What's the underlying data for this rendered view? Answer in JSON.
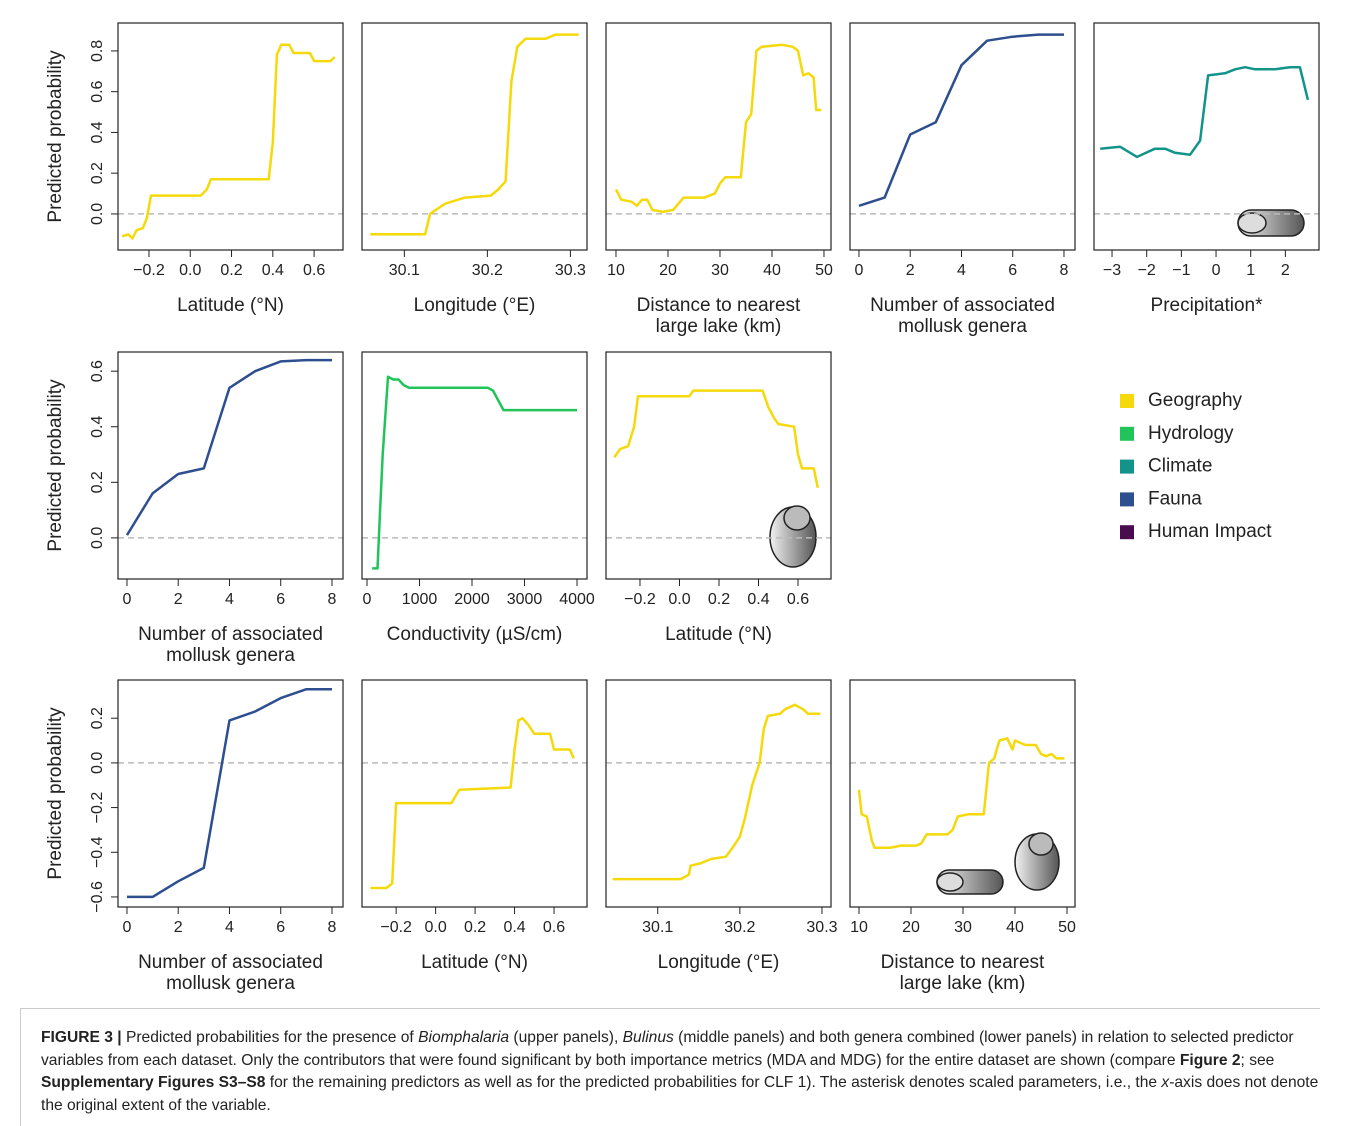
{
  "chart_data": [
    {
      "type": "line",
      "ylabel": "Predicted probability",
      "xlabel": [
        "Latitude (°N)"
      ],
      "color": "#f5d90a",
      "x": [
        -0.33,
        -0.3,
        -0.28,
        -0.26,
        -0.23,
        -0.21,
        -0.19,
        0.05,
        0.08,
        0.1,
        0.38,
        0.4,
        0.42,
        0.44,
        0.48,
        0.5,
        0.58,
        0.6,
        0.68,
        0.7
      ],
      "values": [
        -0.11,
        -0.1,
        -0.12,
        -0.08,
        -0.07,
        -0.02,
        0.09,
        0.09,
        0.12,
        0.17,
        0.17,
        0.35,
        0.78,
        0.83,
        0.83,
        0.79,
        0.79,
        0.75,
        0.75,
        0.77
      ],
      "xlim": [
        -0.35,
        0.74
      ],
      "ylim": [
        -0.177,
        0.937
      ],
      "xticks": [
        {
          "value": -0.2,
          "label": "−0.2"
        },
        {
          "value": 0,
          "label": "0.0"
        },
        0.2,
        0.4,
        0.6
      ],
      "yticks": [
        {
          "value": 0,
          "label": "0.0"
        },
        0.2,
        0.4,
        0.6,
        0.8
      ],
      "reference_line": 0
    },
    {
      "type": "line",
      "xlabel": [
        "Longitude (°E)"
      ],
      "color": "#f5d90a",
      "x": [
        30.059,
        30.125,
        30.131,
        30.149,
        30.173,
        30.204,
        30.213,
        30.222,
        30.229,
        30.236,
        30.246,
        30.27,
        30.282,
        30.31
      ],
      "values": [
        -0.1,
        -0.1,
        0,
        0.05,
        0.08,
        0.09,
        0.12,
        0.16,
        0.65,
        0.82,
        0.86,
        0.86,
        0.88,
        0.88
      ],
      "xlim": [
        30.049,
        30.32
      ],
      "ylim": [
        -0.177,
        0.937
      ],
      "xticks": [
        30.1,
        30.2,
        30.3
      ],
      "reference_line": 0
    },
    {
      "type": "line",
      "xlabel": [
        "Distance to nearest",
        "large lake (km)"
      ],
      "color": "#f5d90a",
      "x": [
        10,
        11,
        13,
        14,
        15,
        16,
        17,
        19,
        21,
        23,
        27,
        29,
        30,
        31,
        34,
        35,
        36,
        37,
        38,
        42,
        44,
        45,
        46,
        47,
        48,
        48.5,
        49.5
      ],
      "values": [
        0.12,
        0.07,
        0.06,
        0.04,
        0.07,
        0.07,
        0.02,
        0.01,
        0.02,
        0.08,
        0.08,
        0.1,
        0.15,
        0.18,
        0.18,
        0.45,
        0.49,
        0.8,
        0.82,
        0.83,
        0.82,
        0.8,
        0.68,
        0.69,
        0.67,
        0.51,
        0.51
      ],
      "xlim": [
        8.08,
        51.35
      ],
      "ylim": [
        -0.177,
        0.937
      ],
      "xticks": [
        10,
        20,
        30,
        40,
        50
      ],
      "reference_line": 0
    },
    {
      "type": "line",
      "xlabel": [
        "Number of associated",
        "mollusk genera"
      ],
      "color": "#2e4f8f",
      "x": [
        0,
        1,
        2,
        3,
        4,
        5,
        6,
        7,
        8
      ],
      "values": [
        0.04,
        0.08,
        0.39,
        0.45,
        0.73,
        0.85,
        0.87,
        0.88,
        0.88
      ],
      "xlim": [
        -0.35,
        8.43
      ],
      "ylim": [
        -0.177,
        0.937
      ],
      "xticks": [
        0,
        2,
        4,
        6,
        8
      ],
      "reference_line": 0
    },
    {
      "type": "line",
      "xlabel": [
        "Precipitation*"
      ],
      "color": "#13948b",
      "x": [
        -3.34,
        -2.77,
        -2.28,
        -1.76,
        -1.47,
        -1.18,
        -0.75,
        -0.46,
        -0.23,
        0.26,
        0.55,
        0.84,
        1.12,
        1.7,
        2.13,
        2.42,
        2.65
      ],
      "values": [
        0.32,
        0.33,
        0.28,
        0.32,
        0.32,
        0.3,
        0.29,
        0.36,
        0.68,
        0.69,
        0.71,
        0.72,
        0.71,
        0.71,
        0.72,
        0.72,
        0.56
      ],
      "xlim": [
        -3.52,
        2.97
      ],
      "ylim": [
        -0.177,
        0.937
      ],
      "xticks": [
        {
          "value": -3,
          "label": "−3"
        },
        {
          "value": -2,
          "label": "−2"
        },
        {
          "value": -1,
          "label": "−1"
        },
        0,
        1,
        2
      ],
      "reference_line": 0
    },
    {
      "type": "line",
      "ylabel": "Predicted probability",
      "xlabel": [
        "Number of associated",
        "mollusk genera"
      ],
      "color": "#2e4f8f",
      "x": [
        0,
        1,
        2,
        3,
        4,
        5,
        6,
        7,
        8
      ],
      "values": [
        0.01,
        0.16,
        0.23,
        0.25,
        0.54,
        0.6,
        0.635,
        0.64,
        0.64
      ],
      "xlim": [
        -0.35,
        8.43
      ],
      "ylim": [
        -0.148,
        0.669
      ],
      "xticks": [
        0,
        2,
        4,
        6,
        8
      ],
      "yticks": [
        {
          "value": 0,
          "label": "0.0"
        },
        0.2,
        0.4,
        0.6
      ],
      "reference_line": 0
    },
    {
      "type": "line",
      "xlabel": [
        "Conductivity (µS/cm)"
      ],
      "color": "#21c45a",
      "x": [
        100,
        200,
        250,
        300,
        400,
        500,
        600,
        700,
        800,
        1000,
        2000,
        2300,
        2400,
        2600,
        4000
      ],
      "values": [
        -0.11,
        -0.11,
        0.1,
        0.3,
        0.58,
        0.57,
        0.57,
        0.55,
        0.54,
        0.54,
        0.54,
        0.54,
        0.53,
        0.46,
        0.46
      ],
      "xlim": [
        -95,
        4190
      ],
      "ylim": [
        -0.148,
        0.669
      ],
      "xticks": [
        0,
        1000,
        2000,
        3000,
        4000
      ],
      "reference_line": 0
    },
    {
      "type": "line",
      "xlabel": [
        "Latitude (°N)"
      ],
      "color": "#f5d90a",
      "x": [
        -0.33,
        -0.3,
        -0.26,
        -0.23,
        -0.21,
        0.05,
        0.07,
        0.42,
        0.45,
        0.48,
        0.5,
        0.58,
        0.6,
        0.62,
        0.68,
        0.7
      ],
      "values": [
        0.29,
        0.32,
        0.33,
        0.4,
        0.51,
        0.51,
        0.53,
        0.53,
        0.47,
        0.43,
        0.41,
        0.4,
        0.3,
        0.25,
        0.25,
        0.18
      ],
      "xlim": [
        -0.372,
        0.767
      ],
      "ylim": [
        -0.148,
        0.669
      ],
      "xticks": [
        {
          "value": -0.2,
          "label": "−0.2"
        },
        {
          "value": 0,
          "label": "0.0"
        },
        0.2,
        0.4,
        0.6
      ],
      "reference_line": 0
    },
    {
      "type": "line",
      "ylabel": "Predicted probability",
      "xlabel": [
        "Number of associated",
        "mollusk genera"
      ],
      "color": "#2e4f8f",
      "x": [
        0,
        1,
        2,
        3,
        4,
        5,
        6,
        7,
        8
      ],
      "values": [
        -0.6,
        -0.6,
        -0.53,
        -0.47,
        0.19,
        0.23,
        0.29,
        0.33,
        0.33
      ],
      "xlim": [
        -0.35,
        8.43
      ],
      "ylim": [
        -0.645,
        0.371
      ],
      "xticks": [
        0,
        2,
        4,
        6,
        8
      ],
      "yticks": [
        {
          "value": -0.6,
          "label": "−0.6"
        },
        {
          "value": -0.4,
          "label": "−0.4"
        },
        {
          "value": -0.2,
          "label": "−0.2"
        },
        {
          "value": 0,
          "label": "0.0"
        },
        0.2
      ],
      "reference_line": 0
    },
    {
      "type": "line",
      "xlabel": [
        "Latitude (°N)"
      ],
      "color": "#f5d90a",
      "x": [
        -0.33,
        -0.25,
        -0.22,
        -0.2,
        0.08,
        0.12,
        0.38,
        0.4,
        0.42,
        0.44,
        0.47,
        0.5,
        0.58,
        0.6,
        0.68,
        0.7
      ],
      "values": [
        -0.56,
        -0.56,
        -0.54,
        -0.18,
        -0.18,
        -0.12,
        -0.11,
        0.06,
        0.19,
        0.2,
        0.17,
        0.13,
        0.13,
        0.06,
        0.06,
        0.02
      ],
      "xlim": [
        -0.373,
        0.767
      ],
      "ylim": [
        -0.645,
        0.371
      ],
      "xticks": [
        {
          "value": -0.2,
          "label": "−0.2"
        },
        {
          "value": 0,
          "label": "0.0"
        },
        0.2,
        0.4,
        0.6
      ],
      "reference_line": 0
    },
    {
      "type": "line",
      "xlabel": [
        "Longitude (°E)"
      ],
      "color": "#f5d90a",
      "x": [
        30.045,
        30.128,
        30.138,
        30.14,
        30.152,
        30.165,
        30.183,
        30.191,
        30.2,
        30.206,
        30.215,
        30.224,
        30.229,
        30.234,
        30.249,
        30.255,
        30.267,
        30.277,
        30.283,
        30.298
      ],
      "values": [
        -0.52,
        -0.52,
        -0.5,
        -0.46,
        -0.45,
        -0.43,
        -0.42,
        -0.38,
        -0.33,
        -0.25,
        -0.1,
        0,
        0.15,
        0.21,
        0.22,
        0.24,
        0.26,
        0.24,
        0.22,
        0.22
      ],
      "xlim": [
        30.037,
        30.311
      ],
      "ylim": [
        -0.645,
        0.371
      ],
      "xticks": [
        30.1,
        30.2,
        30.3
      ],
      "reference_line": 0
    },
    {
      "type": "line",
      "xlabel": [
        "Distance to nearest",
        "large lake (km)"
      ],
      "color": "#f5d90a",
      "x": [
        10,
        10.5,
        11.5,
        12.5,
        13,
        16,
        18,
        21,
        22,
        23,
        27,
        28,
        29,
        31,
        34,
        35,
        36,
        37,
        38.5,
        39.5,
        40,
        42,
        44,
        45,
        46,
        47,
        48,
        49.5
      ],
      "values": [
        -0.12,
        -0.23,
        -0.24,
        -0.35,
        -0.38,
        -0.38,
        -0.37,
        -0.37,
        -0.36,
        -0.32,
        -0.32,
        -0.3,
        -0.24,
        -0.23,
        -0.23,
        0,
        0.02,
        0.1,
        0.11,
        0.06,
        0.1,
        0.08,
        0.08,
        0.04,
        0.03,
        0.04,
        0.02,
        0.02
      ],
      "xlim": [
        8.27,
        51.54
      ],
      "ylim": [
        -0.645,
        0.371
      ],
      "xticks": [
        10,
        20,
        30,
        40,
        50
      ],
      "reference_line": 0
    }
  ],
  "legend": [
    {
      "name": "Geography",
      "color": "#f5d90a"
    },
    {
      "name": "Hydrology",
      "color": "#21c45a"
    },
    {
      "name": "Climate",
      "color": "#13948b"
    },
    {
      "name": "Fauna",
      "color": "#2e4f8f"
    },
    {
      "name": "Human Impact",
      "color": "#4b0b4f"
    }
  ],
  "caption": [
    "FIGURE 3 |",
    " Predicted probabilities for the presence of ",
    "Biomphalaria",
    " (upper panels), ",
    "Bulinus",
    " (middle panels) and both genera combined (lower panels) in relation to selected predictor variables from each dataset. Only the contributors that were found significant by both importance metrics (MDA and MDG) for the entire dataset are shown (compare ",
    "Figure 2",
    "; see ",
    "Supplementary Figures S3–S8",
    " for the remaining predictors as well as for the predicted probabilities for CLF 1). The asterisk denotes scaled parameters, i.e., the ",
    "x",
    "-axis does not denote the original extent of the variable."
  ]
}
